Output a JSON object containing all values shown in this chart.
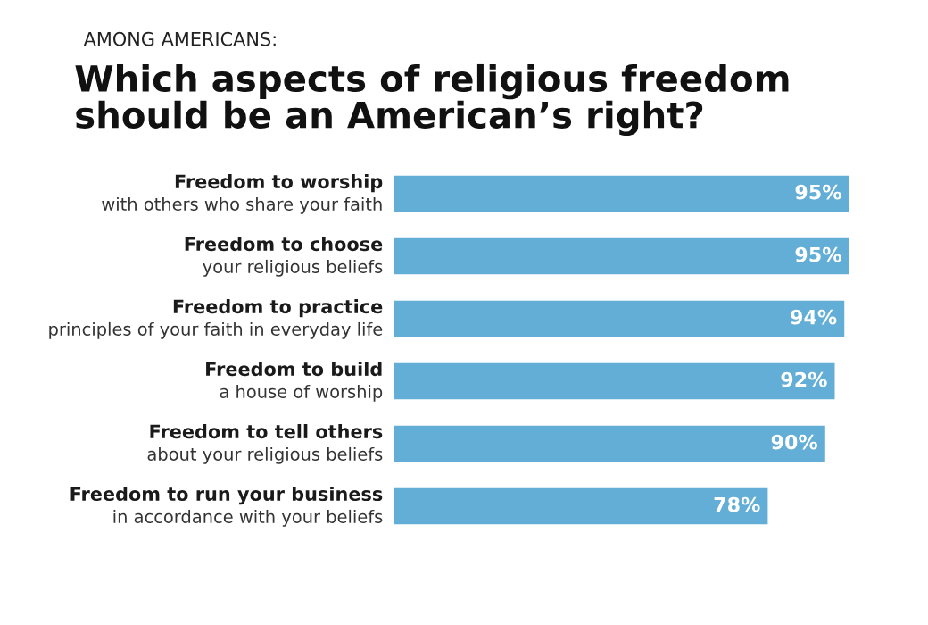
{
  "chart_data": {
    "type": "bar",
    "orientation": "horizontal",
    "subtitle": "AMONG AMERICANS:",
    "title": "Which aspects of religious freedom\nshould be an American’s right?",
    "categories": [
      "Freedom to worship\nwith others who share your faith",
      "Freedom to choose\nyour religious beliefs",
      "Freedom to practice\nprinciples of your faith in everyday life",
      "Freedom to build\na house of worship",
      "Freedom to tell others\nabout your religious beliefs",
      "Freedom to run your business\nin accordance with your beliefs"
    ],
    "values": [
      95,
      95,
      94,
      92,
      90,
      78
    ],
    "value_labels": [
      "95%",
      "95%",
      "94%",
      "92%",
      "90%",
      "78%"
    ],
    "color": "#63aed6"
  }
}
